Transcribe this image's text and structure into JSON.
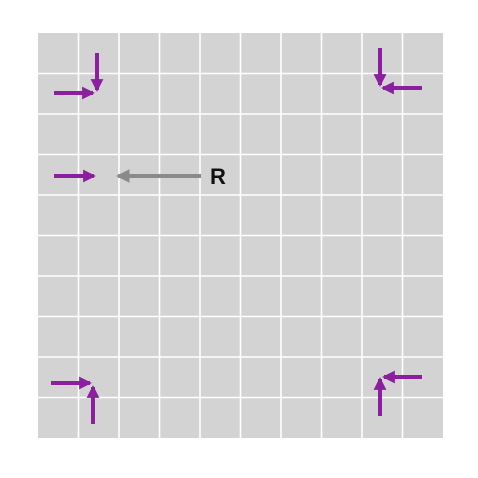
{
  "grid": {
    "columns": 10,
    "rows": 10,
    "background_color": "#d3d3d4",
    "line_color": "#ffffff"
  },
  "colors": {
    "corner_arrows": "#8b1fa0",
    "pointer_arrow": "#888a8d",
    "label": "#111111"
  },
  "pointer": {
    "label": "R"
  }
}
